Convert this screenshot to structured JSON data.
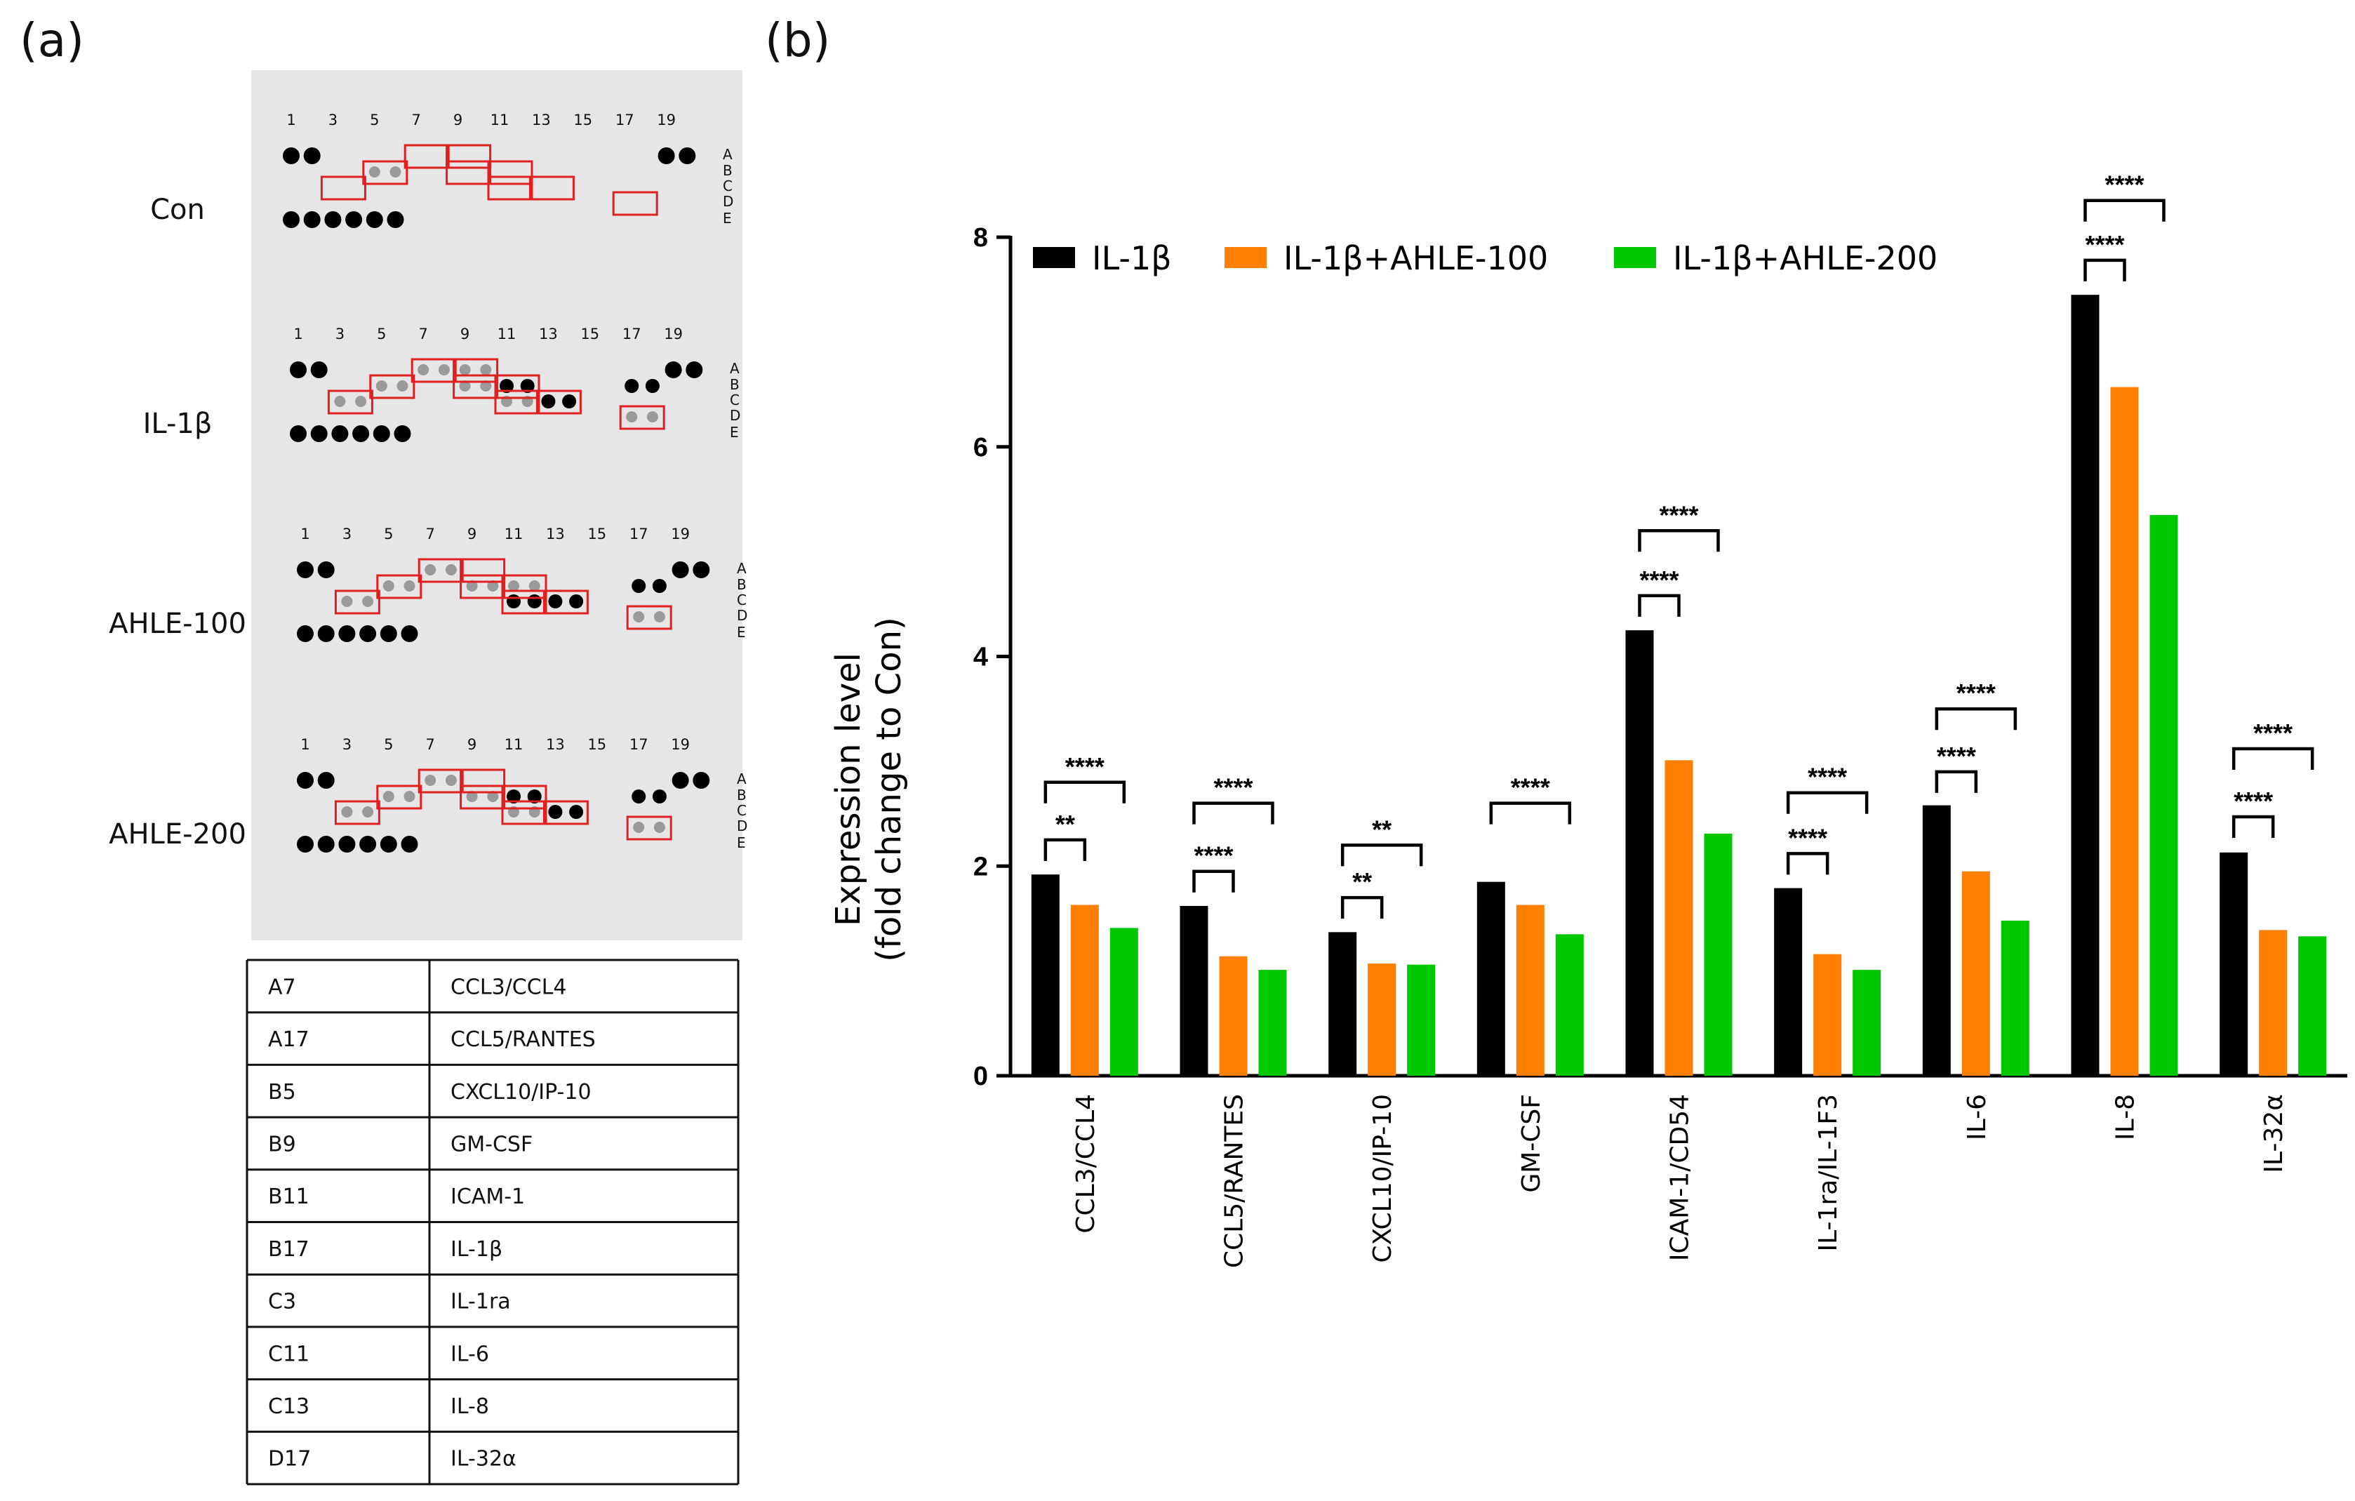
{
  "panel_a": {
    "letter": "(a)",
    "column_numbers": [
      "1",
      "3",
      "5",
      "7",
      "9",
      "11",
      "13",
      "15",
      "17",
      "19"
    ],
    "row_letters": [
      "A",
      "B",
      "C",
      "D",
      "E"
    ],
    "samples": [
      {
        "label": "Con",
        "boxes": [
          "A7",
          "A9",
          "B9",
          "B11",
          "B5",
          "C3",
          "C11",
          "C13",
          "D17"
        ],
        "dark_spots": [],
        "medium_spots": [
          "B5"
        ]
      },
      {
        "label": "IL-1β",
        "boxes": [
          "A7",
          "A9",
          "B9",
          "B5",
          "C3",
          "B11",
          "C11",
          "C13",
          "D17"
        ],
        "dark_spots": [
          "B11",
          "C13",
          "B17"
        ],
        "medium_spots": [
          "C11",
          "C3",
          "B5",
          "A7",
          "A9",
          "B9",
          "D17"
        ]
      },
      {
        "label": "AHLE-100",
        "boxes": [
          "A7",
          "A9",
          "B9",
          "B5",
          "C3",
          "B11",
          "C11",
          "C13",
          "D17"
        ],
        "dark_spots": [
          "C13",
          "B17",
          "C11"
        ],
        "medium_spots": [
          "B11",
          "A7",
          "B9",
          "C3",
          "B5",
          "D17"
        ]
      },
      {
        "label": "AHLE-200",
        "boxes": [
          "A7",
          "A9",
          "B9",
          "B5",
          "C3",
          "B11",
          "C11",
          "C13",
          "D17"
        ],
        "dark_spots": [
          "C13",
          "B17",
          "B11"
        ],
        "medium_spots": [
          "C11",
          "B9",
          "A7",
          "C3",
          "B5",
          "D17"
        ]
      }
    ],
    "table": [
      [
        "A7",
        "CCL3/CCL4"
      ],
      [
        "A17",
        "CCL5/RANTES"
      ],
      [
        "B5",
        "CXCL10/IP-10"
      ],
      [
        "B9",
        "GM-CSF"
      ],
      [
        "B11",
        "ICAM-1"
      ],
      [
        "B17",
        "IL-1β"
      ],
      [
        "C3",
        "IL-1ra"
      ],
      [
        "C11",
        "IL-6"
      ],
      [
        "C13",
        "IL-8"
      ],
      [
        "D17",
        "IL-32α"
      ]
    ]
  },
  "panel_b": {
    "letter": "(b)"
  },
  "chart_data": {
    "type": "bar",
    "title": "",
    "ylabel_line1": "Expression level",
    "ylabel_line2": "(fold change to Con)",
    "xlabel": "",
    "ylim": [
      0,
      8
    ],
    "yticks": [
      "0",
      "2",
      "4",
      "6",
      "8"
    ],
    "legend_placement": "top",
    "grid": false,
    "categories": [
      "CCL3/CCL4",
      "CCL5/RANTES",
      "CXCL10/IP-10",
      "GM-CSF",
      "ICAM-1/CD54",
      "IL-1ra/IL-1F3",
      "IL-6",
      "IL-8",
      "IL-32α"
    ],
    "series": [
      {
        "name": "IL-1β",
        "color": "#000000",
        "values": [
          1.92,
          1.62,
          1.37,
          1.85,
          4.25,
          1.79,
          2.58,
          7.45,
          2.13
        ]
      },
      {
        "name": "IL-1β+AHLE-100",
        "color": "#ff8000",
        "values": [
          1.63,
          1.14,
          1.07,
          1.63,
          3.01,
          1.16,
          1.95,
          6.57,
          1.39
        ]
      },
      {
        "name": "IL-1β+AHLE-200",
        "color": "#00c800",
        "values": [
          1.41,
          1.01,
          1.06,
          1.35,
          2.31,
          1.01,
          1.48,
          5.35,
          1.33
        ]
      }
    ],
    "significance": [
      {
        "category": 0,
        "from": 0,
        "to": 1,
        "label": "**",
        "y": 2.25
      },
      {
        "category": 0,
        "from": 0,
        "to": 2,
        "label": "****",
        "y": 2.8
      },
      {
        "category": 1,
        "from": 0,
        "to": 1,
        "label": "****",
        "y": 1.95
      },
      {
        "category": 1,
        "from": 0,
        "to": 2,
        "label": "****",
        "y": 2.6
      },
      {
        "category": 2,
        "from": 0,
        "to": 1,
        "label": "**",
        "y": 1.7
      },
      {
        "category": 2,
        "from": 0,
        "to": 2,
        "label": "**",
        "y": 2.2
      },
      {
        "category": 3,
        "from": 0,
        "to": 2,
        "label": "****",
        "y": 2.6
      },
      {
        "category": 4,
        "from": 0,
        "to": 1,
        "label": "****",
        "y": 4.58
      },
      {
        "category": 4,
        "from": 0,
        "to": 2,
        "label": "****",
        "y": 5.2
      },
      {
        "category": 5,
        "from": 0,
        "to": 1,
        "label": "****",
        "y": 2.12
      },
      {
        "category": 5,
        "from": 0,
        "to": 2,
        "label": "****",
        "y": 2.7
      },
      {
        "category": 6,
        "from": 0,
        "to": 1,
        "label": "****",
        "y": 2.9
      },
      {
        "category": 6,
        "from": 0,
        "to": 2,
        "label": "****",
        "y": 3.5
      },
      {
        "category": 7,
        "from": 0,
        "to": 1,
        "label": "****",
        "y": 7.78
      },
      {
        "category": 7,
        "from": 0,
        "to": 2,
        "label": "****",
        "y": 8.35
      },
      {
        "category": 8,
        "from": 0,
        "to": 1,
        "label": "****",
        "y": 2.47
      },
      {
        "category": 8,
        "from": 0,
        "to": 2,
        "label": "****",
        "y": 3.12
      }
    ]
  }
}
